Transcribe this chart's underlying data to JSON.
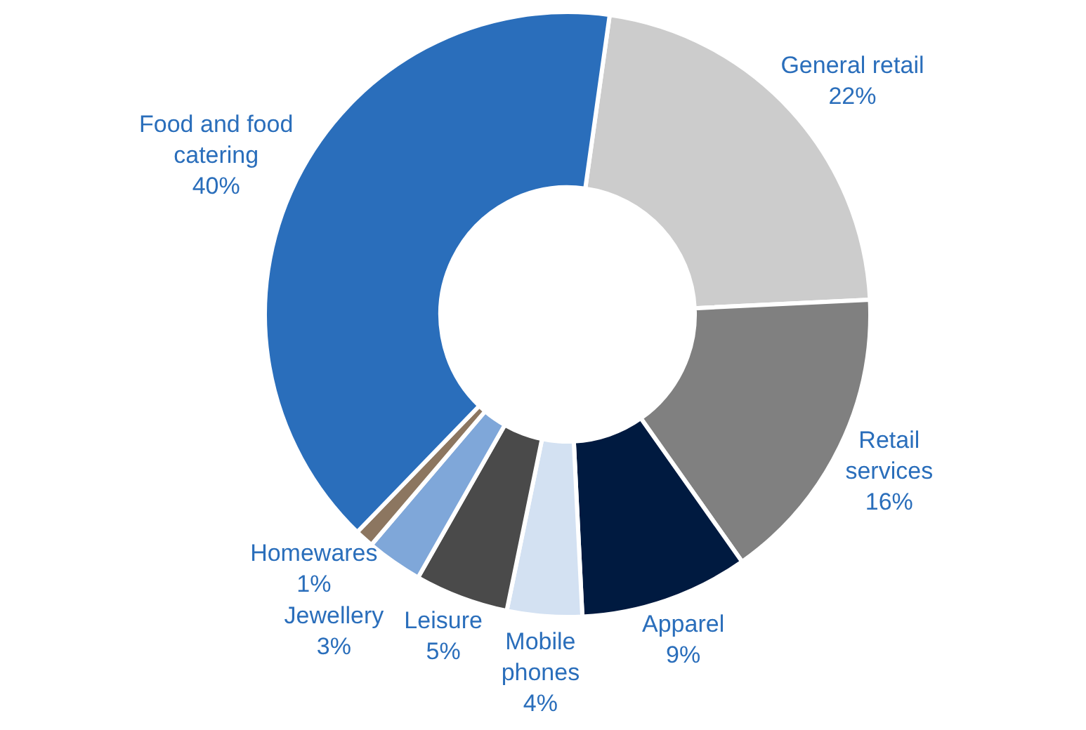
{
  "chart_data": {
    "type": "donut",
    "categories": [
      "General retail",
      "Retail services",
      "Apparel",
      "Mobile phones",
      "Leisure",
      "Jewellery",
      "Homewares",
      "Food and food catering"
    ],
    "values": [
      22,
      16,
      9,
      4,
      5,
      3,
      1,
      40
    ],
    "colors": [
      "#cccccc",
      "#808080",
      "#001a40",
      "#d3e1f2",
      "#4a4a4a",
      "#7fa7d9",
      "#8c7660",
      "#2a6ebb"
    ],
    "value_labels": [
      "22%",
      "16%",
      "9%",
      "4%",
      "5%",
      "3%",
      "1%",
      "40%"
    ],
    "legend": false
  }
}
